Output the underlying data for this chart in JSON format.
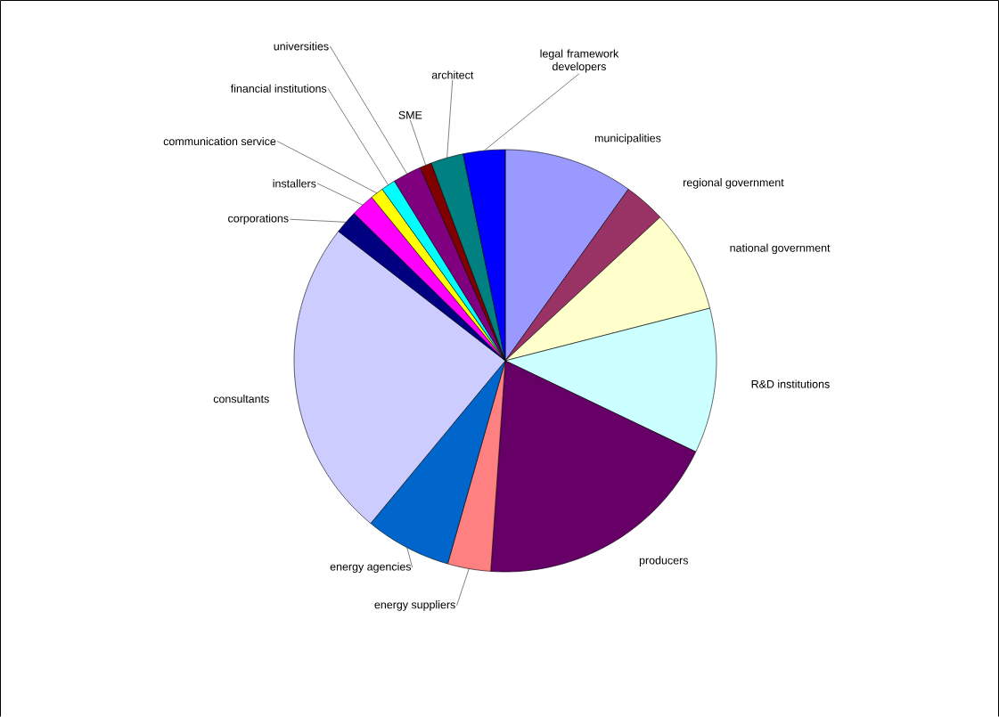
{
  "chart_data": {
    "type": "pie",
    "categories": [
      "municipalities",
      "regional government",
      "national government",
      "R&D institutions",
      "producers",
      "energy suppliers",
      "energy agencies",
      "consultants",
      "corporations",
      "installers",
      "communication service",
      "financial institutions",
      "universities",
      "SME",
      "architect",
      "legal framework developers"
    ],
    "values": [
      9.9,
      3.2,
      7.9,
      11.1,
      19.0,
      3.3,
      6.6,
      24.5,
      1.8,
      1.8,
      1.0,
      1.1,
      2.2,
      0.9,
      2.5,
      3.2
    ],
    "colors": [
      "#9999ff",
      "#993366",
      "#ffffcc",
      "#ccffff",
      "#660066",
      "#ff8080",
      "#0066cc",
      "#ccccff",
      "#000080",
      "#ff00ff",
      "#ffff00",
      "#00ffff",
      "#800080",
      "#800000",
      "#008080",
      "#0000ff"
    ]
  }
}
